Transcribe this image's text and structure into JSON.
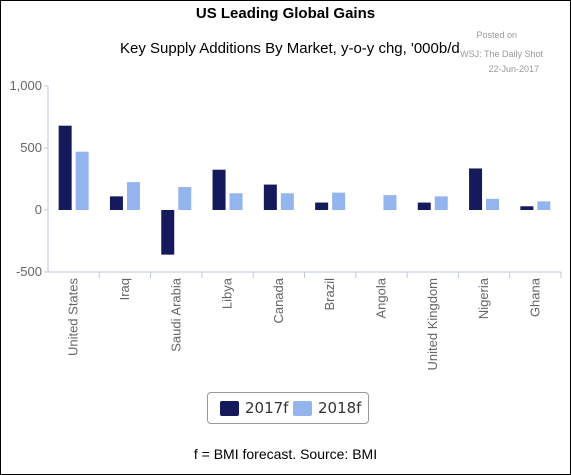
{
  "header": {
    "title": "US Leading Global Gains",
    "subtitle": "Key Supply Additions By Market, y-o-y chg, '000b/d",
    "source_line1": "Posted on",
    "source_line2": "WSJ: The Daily Shot",
    "source_line3": "22-Jun-2017"
  },
  "footer": {
    "note": "f = BMI forecast. Source: BMI"
  },
  "legend": {
    "item1": "2017f",
    "item2": "2018f"
  },
  "colors": {
    "series1": "#141a5c",
    "series2": "#93b4ec",
    "axis": "#bfc8d8",
    "grid": "#e3e3e3"
  },
  "chart_data": {
    "type": "bar",
    "title": "Key Supply Additions By Market, y-o-y chg, '000b/d",
    "xlabel": "",
    "ylabel": "",
    "ylim": [
      -500,
      1000
    ],
    "yticks": [
      "1,000",
      "500",
      "0",
      "-500"
    ],
    "ytick_values": [
      1000,
      500,
      0,
      -500
    ],
    "grid": false,
    "legend_position": "bottom",
    "categories": [
      "United States",
      "Iraq",
      "Saudi Arabia",
      "Libya",
      "Canada",
      "Brazil",
      "Angola",
      "United Kingdom",
      "Nigeria",
      "Ghana"
    ],
    "series": [
      {
        "name": "2017f",
        "values": [
          680,
          110,
          -360,
          325,
          205,
          60,
          0,
          60,
          335,
          30
        ]
      },
      {
        "name": "2018f",
        "values": [
          470,
          225,
          185,
          135,
          135,
          140,
          120,
          110,
          90,
          70
        ]
      }
    ]
  }
}
